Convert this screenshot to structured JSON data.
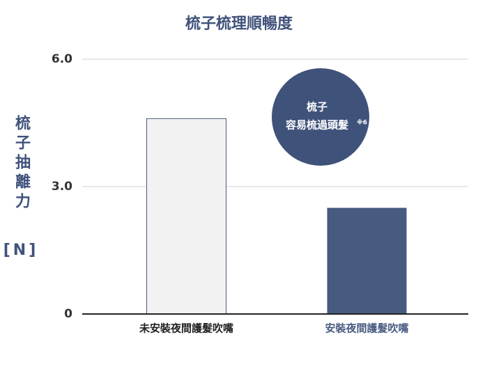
{
  "chart_data": {
    "type": "bar",
    "title": "梳子梳理順暢度",
    "y_label": "梳子抽離力",
    "y_unit": "[N]",
    "categories": [
      "未安裝夜間護髮吹嘴",
      "安裝夜間護髮吹嘴"
    ],
    "values": [
      4.6,
      2.5
    ],
    "colors": [
      "#f2f2f2",
      "#475a80"
    ],
    "bar_stroke": "#4a5a7a",
    "label_colors": [
      "#222222",
      "#475a80"
    ],
    "ylim": [
      0,
      6
    ],
    "yticks": [
      0,
      {
        "value": 3,
        "label": "3.0"
      },
      {
        "value": 6,
        "label": "6.0"
      }
    ],
    "grid": true,
    "annotation": {
      "lines": [
        "梳子",
        "容易梳過頭髮"
      ],
      "note": "※6",
      "color": "#3f527a"
    }
  }
}
